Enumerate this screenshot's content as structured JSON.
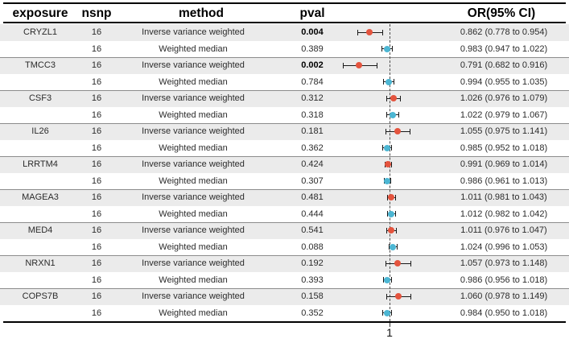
{
  "headers": {
    "exposure": "exposure",
    "nsnp": "nsnp",
    "method": "method",
    "pval": "pval",
    "or_ci": "OR(95% CI)"
  },
  "axis": {
    "ref_tick_label": "1",
    "ref_value": 1
  },
  "colors": {
    "ivw": "#e4543e",
    "wm": "#4cb6d3",
    "row_shade": "#ebebeb",
    "separator": "#8c8c8c",
    "dashed_line": "#4a4a4a",
    "border": "#000000"
  },
  "chart_data": {
    "type": "scatter",
    "variant": "forest-plot",
    "title": "",
    "x_axis": {
      "scale": "linear",
      "ref_line": 1,
      "tick_labels": [
        "1"
      ]
    },
    "legend": {
      "ivw_color_meaning": "Inverse variance weighted",
      "wm_color_meaning": "Weighted median"
    },
    "rows": [
      {
        "exposure": "CRYZL1",
        "nsnp": "16",
        "method": "Inverse variance weighted",
        "pval": "0.004",
        "pval_bold": true,
        "series": "ivw",
        "or": 0.862,
        "ci_low": 0.778,
        "ci_high": 0.954,
        "or_ci": "0.862 (0.778 to 0.954)"
      },
      {
        "exposure": "",
        "nsnp": "16",
        "method": "Weighted median",
        "pval": "0.389",
        "pval_bold": false,
        "series": "wm",
        "or": 0.983,
        "ci_low": 0.947,
        "ci_high": 1.022,
        "or_ci": "0.983 (0.947 to 1.022)"
      },
      {
        "exposure": "TMCC3",
        "nsnp": "16",
        "method": "Inverse variance weighted",
        "pval": "0.002",
        "pval_bold": true,
        "series": "ivw",
        "or": 0.791,
        "ci_low": 0.682,
        "ci_high": 0.916,
        "or_ci": "0.791 (0.682 to 0.916)"
      },
      {
        "exposure": "",
        "nsnp": "16",
        "method": "Weighted median",
        "pval": "0.784",
        "pval_bold": false,
        "series": "wm",
        "or": 0.994,
        "ci_low": 0.955,
        "ci_high": 1.035,
        "or_ci": "0.994 (0.955 to 1.035)"
      },
      {
        "exposure": "CSF3",
        "nsnp": "16",
        "method": "Inverse variance weighted",
        "pval": "0.312",
        "pval_bold": false,
        "series": "ivw",
        "or": 1.026,
        "ci_low": 0.976,
        "ci_high": 1.079,
        "or_ci": "1.026 (0.976 to 1.079)"
      },
      {
        "exposure": "",
        "nsnp": "16",
        "method": "Weighted median",
        "pval": "0.318",
        "pval_bold": false,
        "series": "wm",
        "or": 1.022,
        "ci_low": 0.979,
        "ci_high": 1.067,
        "or_ci": "1.022 (0.979 to 1.067)"
      },
      {
        "exposure": "IL26",
        "nsnp": "16",
        "method": "Inverse variance weighted",
        "pval": "0.181",
        "pval_bold": false,
        "series": "ivw",
        "or": 1.055,
        "ci_low": 0.975,
        "ci_high": 1.141,
        "or_ci": "1.055 (0.975 to 1.141)"
      },
      {
        "exposure": "",
        "nsnp": "16",
        "method": "Weighted median",
        "pval": "0.362",
        "pval_bold": false,
        "series": "wm",
        "or": 0.985,
        "ci_low": 0.952,
        "ci_high": 1.018,
        "or_ci": "0.985 (0.952 to 1.018)"
      },
      {
        "exposure": "LRRTM4",
        "nsnp": "16",
        "method": "Inverse variance weighted",
        "pval": "0.424",
        "pval_bold": false,
        "series": "ivw",
        "or": 0.991,
        "ci_low": 0.969,
        "ci_high": 1.014,
        "or_ci": "0.991 (0.969 to 1.014)"
      },
      {
        "exposure": "",
        "nsnp": "16",
        "method": "Weighted median",
        "pval": "0.307",
        "pval_bold": false,
        "series": "wm",
        "or": 0.986,
        "ci_low": 0.961,
        "ci_high": 1.013,
        "or_ci": "0.986 (0.961 to 1.013)"
      },
      {
        "exposure": "MAGEA3",
        "nsnp": "16",
        "method": "Inverse variance weighted",
        "pval": "0.481",
        "pval_bold": false,
        "series": "ivw",
        "or": 1.011,
        "ci_low": 0.981,
        "ci_high": 1.043,
        "or_ci": "1.011 (0.981 to 1.043)"
      },
      {
        "exposure": "",
        "nsnp": "16",
        "method": "Weighted median",
        "pval": "0.444",
        "pval_bold": false,
        "series": "wm",
        "or": 1.012,
        "ci_low": 0.982,
        "ci_high": 1.042,
        "or_ci": "1.012 (0.982 to 1.042)"
      },
      {
        "exposure": "MED4",
        "nsnp": "16",
        "method": "Inverse variance weighted",
        "pval": "0.541",
        "pval_bold": false,
        "series": "ivw",
        "or": 1.011,
        "ci_low": 0.976,
        "ci_high": 1.047,
        "or_ci": "1.011 (0.976 to 1.047)"
      },
      {
        "exposure": "",
        "nsnp": "16",
        "method": "Weighted median",
        "pval": "0.088",
        "pval_bold": false,
        "series": "wm",
        "or": 1.024,
        "ci_low": 0.996,
        "ci_high": 1.053,
        "or_ci": "1.024 (0.996 to 1.053)"
      },
      {
        "exposure": "NRXN1",
        "nsnp": "16",
        "method": "Inverse variance weighted",
        "pval": "0.192",
        "pval_bold": false,
        "series": "ivw",
        "or": 1.057,
        "ci_low": 0.973,
        "ci_high": 1.148,
        "or_ci": "1.057 (0.973 to 1.148)"
      },
      {
        "exposure": "",
        "nsnp": "16",
        "method": "Weighted median",
        "pval": "0.393",
        "pval_bold": false,
        "series": "wm",
        "or": 0.986,
        "ci_low": 0.956,
        "ci_high": 1.018,
        "or_ci": "0.986 (0.956 to 1.018)"
      },
      {
        "exposure": "COPS7B",
        "nsnp": "16",
        "method": "Inverse variance weighted",
        "pval": "0.158",
        "pval_bold": false,
        "series": "ivw",
        "or": 1.06,
        "ci_low": 0.978,
        "ci_high": 1.149,
        "or_ci": "1.060 (0.978 to 1.149)"
      },
      {
        "exposure": "",
        "nsnp": "16",
        "method": "Weighted median",
        "pval": "0.352",
        "pval_bold": false,
        "series": "wm",
        "or": 0.984,
        "ci_low": 0.95,
        "ci_high": 1.018,
        "or_ci": "0.984 (0.950 to 1.018)"
      }
    ]
  }
}
